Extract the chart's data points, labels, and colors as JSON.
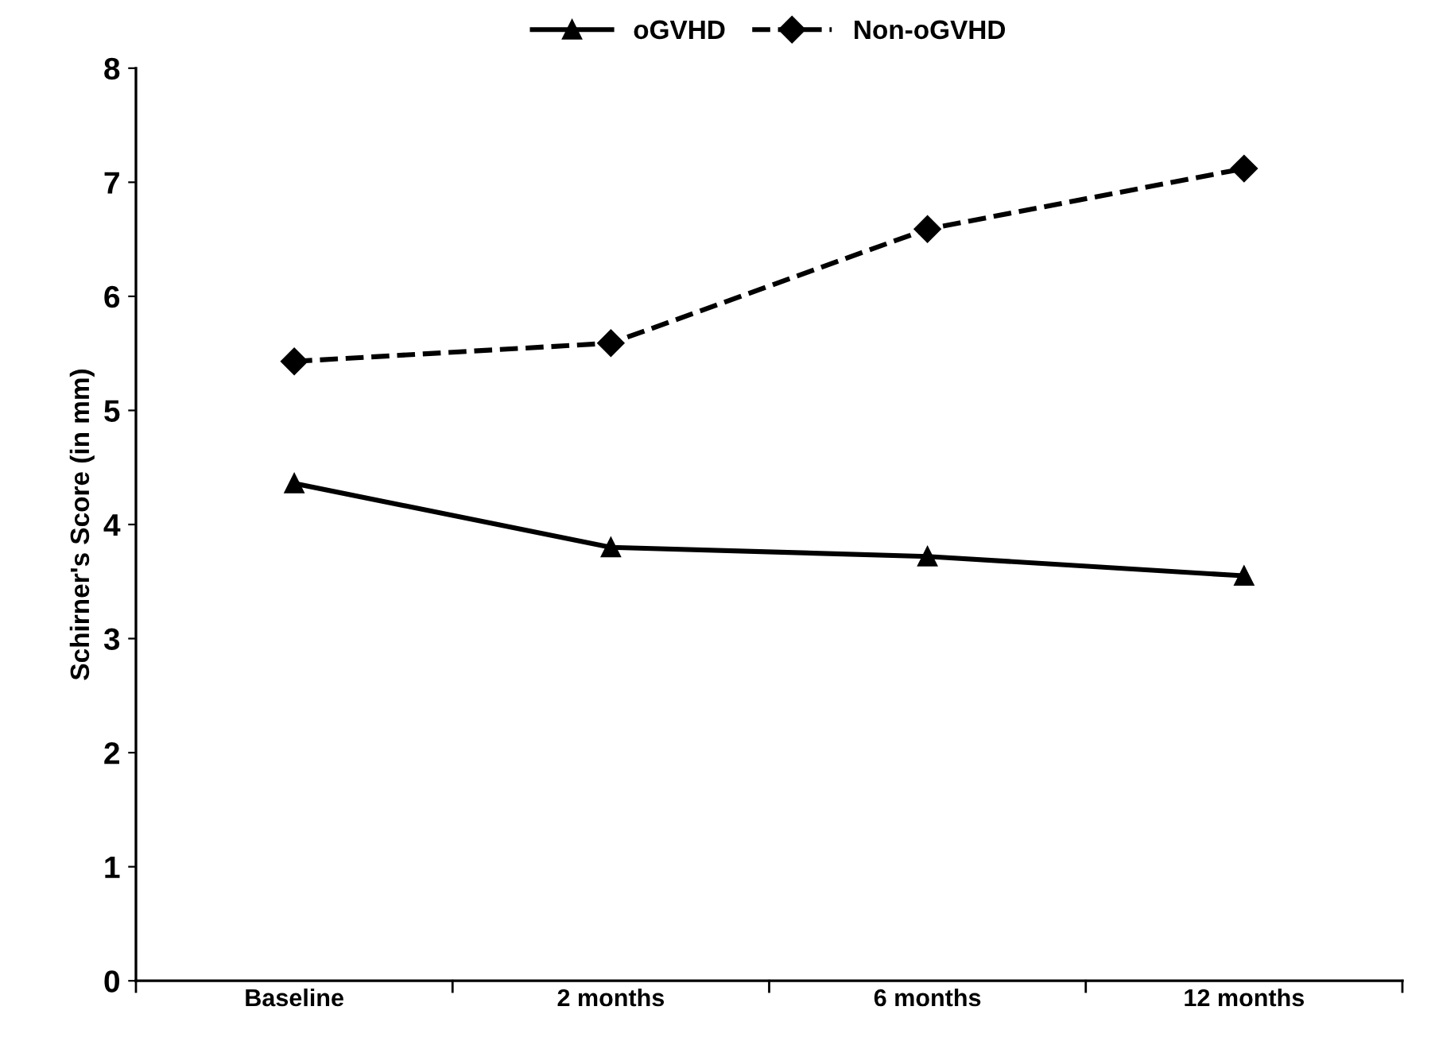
{
  "chart_data": {
    "type": "line",
    "ylabel": "Schirner's Score (in mm)",
    "categories": [
      "Baseline",
      "2 months",
      "6 months",
      "12 months"
    ],
    "series": [
      {
        "name": "oGVHD",
        "color": "#000000",
        "values": [
          4.36,
          3.8,
          3.72,
          3.55
        ],
        "marker": "triangle",
        "line_style": "solid"
      },
      {
        "name": "Non-oGVHD",
        "color": "#000000",
        "values": [
          5.43,
          5.59,
          6.59,
          7.12
        ],
        "marker": "diamond",
        "line_style": "dashed"
      }
    ],
    "ylim": [
      0,
      8
    ],
    "yticks": [
      0,
      1,
      2,
      3,
      4,
      5,
      6,
      7,
      8
    ],
    "grid": false,
    "legend": "top"
  }
}
